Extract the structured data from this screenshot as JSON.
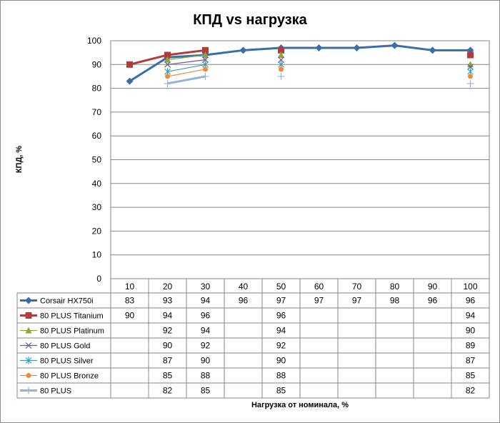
{
  "chart_data": {
    "type": "line",
    "title": "КПД vs нагрузка",
    "xlabel": "Нагрузка  от номинала,  %",
    "ylabel": "КПД, %",
    "ylim": [
      0,
      100
    ],
    "yticks": [
      0,
      10,
      20,
      30,
      40,
      50,
      60,
      70,
      80,
      90,
      100
    ],
    "categories": [
      "10",
      "20",
      "30",
      "40",
      "50",
      "60",
      "70",
      "80",
      "90",
      "100"
    ],
    "legend": "data-table",
    "grid": true,
    "series": [
      {
        "name": "Corsair HX750i",
        "color": "#3a6ea8",
        "marker": "diamond",
        "values": [
          83,
          93,
          94,
          96,
          97,
          97,
          97,
          98,
          96,
          96
        ],
        "line_segments": [
          [
            0,
            9
          ]
        ]
      },
      {
        "name": "80 PLUS Titanium",
        "color": "#b23b3b",
        "marker": "square",
        "values": [
          90,
          94,
          96,
          null,
          96,
          null,
          null,
          null,
          null,
          94
        ],
        "line_segments": [
          [
            0,
            2
          ]
        ]
      },
      {
        "name": "80 PLUS Platinum",
        "color": "#8ca63a",
        "marker": "triangle",
        "values": [
          null,
          92,
          94,
          null,
          94,
          null,
          null,
          null,
          null,
          90
        ],
        "line_segments": [
          [
            1,
            2
          ]
        ]
      },
      {
        "name": "80 PLUS Gold",
        "color": "#6b55a0",
        "marker": "x",
        "values": [
          null,
          90,
          92,
          null,
          92,
          null,
          null,
          null,
          null,
          89
        ],
        "line_segments": [
          [
            1,
            2
          ]
        ]
      },
      {
        "name": "80 PLUS Silver",
        "color": "#3a9fb5",
        "marker": "star",
        "values": [
          null,
          87,
          90,
          null,
          90,
          null,
          null,
          null,
          null,
          87
        ],
        "line_segments": [
          [
            1,
            2
          ]
        ]
      },
      {
        "name": "80 PLUS Bronze",
        "color": "#f08a33",
        "marker": "circle",
        "values": [
          null,
          85,
          88,
          null,
          88,
          null,
          null,
          null,
          null,
          85
        ],
        "line_segments": [
          [
            1,
            2
          ]
        ]
      },
      {
        "name": "80 PLUS",
        "color": "#96b2d8",
        "marker": "plus",
        "values": [
          null,
          82,
          85,
          null,
          85,
          null,
          null,
          null,
          null,
          82
        ],
        "line_segments": [
          [
            1,
            2
          ]
        ]
      }
    ]
  }
}
